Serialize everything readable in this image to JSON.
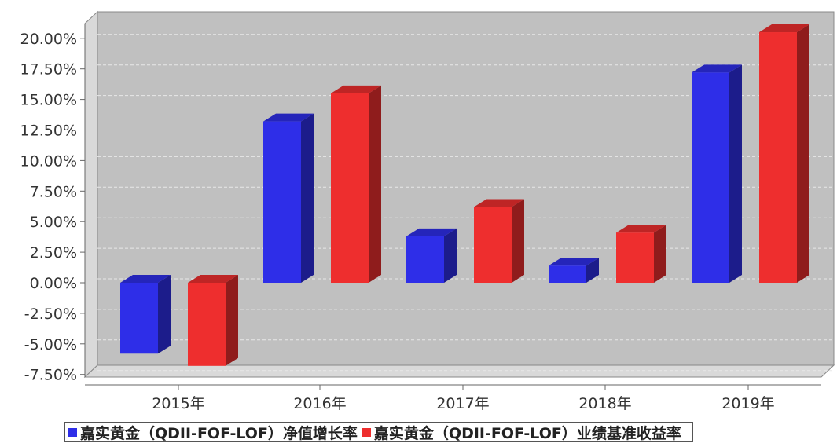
{
  "chart_data": {
    "type": "bar",
    "categories": [
      "2015年",
      "2016年",
      "2017年",
      "2018年",
      "2019年"
    ],
    "series": [
      {
        "name": "嘉实黄金（QDII-FOF-LOF）净值增长率",
        "color": "#2e2ee8",
        "values": [
          -5.8,
          13.2,
          3.8,
          1.4,
          17.2
        ]
      },
      {
        "name": "嘉实黄金（QDII-FOF-LOF）业绩基准收益率",
        "color": "#ee2e2e",
        "values": [
          -6.8,
          15.5,
          6.2,
          4.1,
          20.5
        ]
      }
    ],
    "y_ticks": [
      "20.00%",
      "17.50%",
      "15.00%",
      "12.50%",
      "10.00%",
      "7.50%",
      "5.00%",
      "2.50%",
      "0.00%",
      "-2.50%",
      "-5.00%",
      "-7.50%"
    ],
    "ylim": [
      -7.5,
      20
    ],
    "grid": true,
    "legend_position": "bottom"
  }
}
